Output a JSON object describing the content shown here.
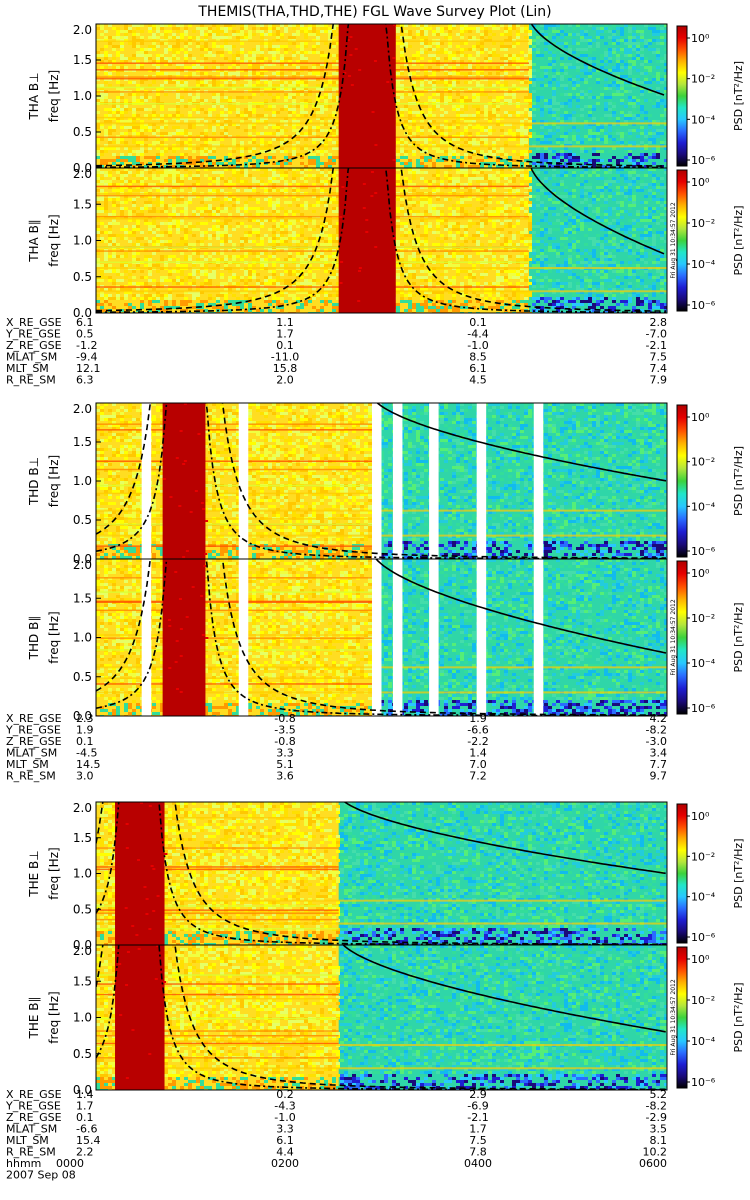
{
  "title": "THEMIS(THA,THD,THE) FGL Wave Survey Plot (Lin)",
  "colors": {
    "colorbar": [
      "#000000",
      "#1a0a7a",
      "#1e1ed2",
      "#2a6cff",
      "#28c8ff",
      "#22e6c8",
      "#3cd23c",
      "#b4e63c",
      "#ffff00",
      "#ffb000",
      "#ff5000",
      "#e60000",
      "#b00000"
    ],
    "background": "#ffffff",
    "curve": "#000000"
  },
  "colorbar_label": "PSD [nT²/Hz]",
  "colorbar_ticks": [
    "10⁰",
    "10⁻²",
    "10⁻⁴",
    "10⁻⁶"
  ],
  "freq_label": "freq [Hz]",
  "freq_ticks": [
    "0.0",
    "0.5",
    "1.0",
    "1.5",
    "2.0"
  ],
  "timestamp": "Fri Aug 31 10:34:57 2012",
  "probes": [
    {
      "panels": [
        {
          "label": "THA B⊥"
        },
        {
          "label": "THA B∥"
        }
      ],
      "ephem": [
        {
          "name": "X_RE_GSE",
          "values": [
            "6.1",
            "1.1",
            "0.1",
            "2.8"
          ]
        },
        {
          "name": "Y_RE_GSE",
          "values": [
            "0.5",
            "1.7",
            "-4.4",
            "-7.0"
          ]
        },
        {
          "name": "Z_RE_GSE",
          "values": [
            "-1.2",
            "0.1",
            "-1.0",
            "-2.1"
          ]
        },
        {
          "name": "MLAT_SM",
          "values": [
            "-9.4",
            "-11.0",
            "8.5",
            "7.5"
          ]
        },
        {
          "name": "MLT_SM",
          "values": [
            "12.1",
            "15.8",
            "6.1",
            "7.4"
          ]
        },
        {
          "name": "R_RE_SM",
          "values": [
            "6.3",
            "2.0",
            "4.5",
            "7.9"
          ]
        }
      ]
    },
    {
      "panels": [
        {
          "label": "THD B⊥"
        },
        {
          "label": "THD B∥"
        }
      ],
      "ephem": [
        {
          "name": "X_RE_GSE",
          "values": [
            "2.3",
            "-0.8",
            "1.9",
            "4.2"
          ]
        },
        {
          "name": "Y_RE_GSE",
          "values": [
            "1.9",
            "-3.5",
            "-6.6",
            "-8.2"
          ]
        },
        {
          "name": "Z_RE_GSE",
          "values": [
            "0.1",
            "-0.8",
            "-2.2",
            "-3.0"
          ]
        },
        {
          "name": "MLAT_SM",
          "values": [
            "-4.5",
            "3.3",
            "1.4",
            "3.4"
          ]
        },
        {
          "name": "MLT_SM",
          "values": [
            "14.5",
            "5.1",
            "7.0",
            "7.7"
          ]
        },
        {
          "name": "R_RE_SM",
          "values": [
            "3.0",
            "3.6",
            "7.2",
            "9.7"
          ]
        }
      ]
    },
    {
      "panels": [
        {
          "label": "THE B⊥"
        },
        {
          "label": "THE B∥"
        }
      ],
      "ephem": [
        {
          "name": "X_RE_GSE",
          "values": [
            "1.4",
            "0.2",
            "2.9",
            "5.2"
          ]
        },
        {
          "name": "Y_RE_GSE",
          "values": [
            "1.7",
            "-4.3",
            "-6.9",
            "-8.2"
          ]
        },
        {
          "name": "Z_RE_GSE",
          "values": [
            "0.1",
            "-1.0",
            "-2.1",
            "-2.9"
          ]
        },
        {
          "name": "MLAT_SM",
          "values": [
            "-6.6",
            "3.3",
            "1.7",
            "3.5"
          ]
        },
        {
          "name": "MLT_SM",
          "values": [
            "15.4",
            "6.1",
            "7.5",
            "8.1"
          ]
        },
        {
          "name": "R_RE_SM",
          "values": [
            "2.2",
            "4.4",
            "7.8",
            "10.2"
          ]
        }
      ]
    }
  ],
  "time_axis": {
    "name": "hhmm",
    "values": [
      "0000",
      "0200",
      "0400",
      "0600"
    ]
  },
  "date": "2007 Sep 08",
  "chart_data": {
    "type": "heatmap",
    "title": "THEMIS(THA,THD,THE) FGL Wave Survey Plot (Lin)",
    "xlabel": "hhmm",
    "ylabel": "freq [Hz]",
    "x_ticks": [
      "0000",
      "0200",
      "0400",
      "0600"
    ],
    "xlim_hours": [
      0,
      6
    ],
    "ylim": [
      0,
      2
    ],
    "colorbar": {
      "label": "PSD [nT²/Hz]",
      "scale": "log",
      "range": [
        1e-06,
        10
      ]
    },
    "panels": [
      {
        "probe": "THA",
        "component": "B⊥",
        "strong_intervals_h": [
          [
            2.55,
            3.15
          ]
        ],
        "data_gaps_h": [],
        "quiet_after_h": 4.55,
        "curves": {
          "dashdot_center_h": 2.85,
          "dashed_center_h": 2.85
        }
      },
      {
        "probe": "THA",
        "component": "B∥",
        "strong_intervals_h": [
          [
            2.55,
            3.15
          ]
        ],
        "data_gaps_h": [],
        "quiet_after_h": 4.55
      },
      {
        "probe": "THD",
        "component": "B⊥",
        "strong_intervals_h": [
          [
            0.7,
            1.15
          ]
        ],
        "data_gaps_h": [
          [
            0.48,
            0.58
          ],
          [
            1.5,
            1.6
          ],
          [
            2.9,
            3.0
          ],
          [
            3.12,
            3.22
          ],
          [
            3.5,
            3.6
          ],
          [
            4.0,
            4.1
          ],
          [
            4.6,
            4.7
          ]
        ],
        "quiet_after_h": 2.9
      },
      {
        "probe": "THD",
        "component": "B∥",
        "strong_intervals_h": [
          [
            0.7,
            1.15
          ]
        ],
        "data_gaps_h": [
          [
            0.48,
            0.58
          ],
          [
            1.5,
            1.6
          ],
          [
            2.9,
            3.0
          ],
          [
            3.12,
            3.22
          ],
          [
            3.5,
            3.6
          ],
          [
            4.0,
            4.1
          ],
          [
            4.6,
            4.7
          ]
        ],
        "quiet_after_h": 2.9
      },
      {
        "probe": "THE",
        "component": "B⊥",
        "strong_intervals_h": [
          [
            0.2,
            0.72
          ]
        ],
        "data_gaps_h": [],
        "quiet_after_h": 2.55
      },
      {
        "probe": "THE",
        "component": "B∥",
        "strong_intervals_h": [
          [
            0.2,
            0.72
          ]
        ],
        "data_gaps_h": [],
        "quiet_after_h": 2.55
      }
    ]
  }
}
